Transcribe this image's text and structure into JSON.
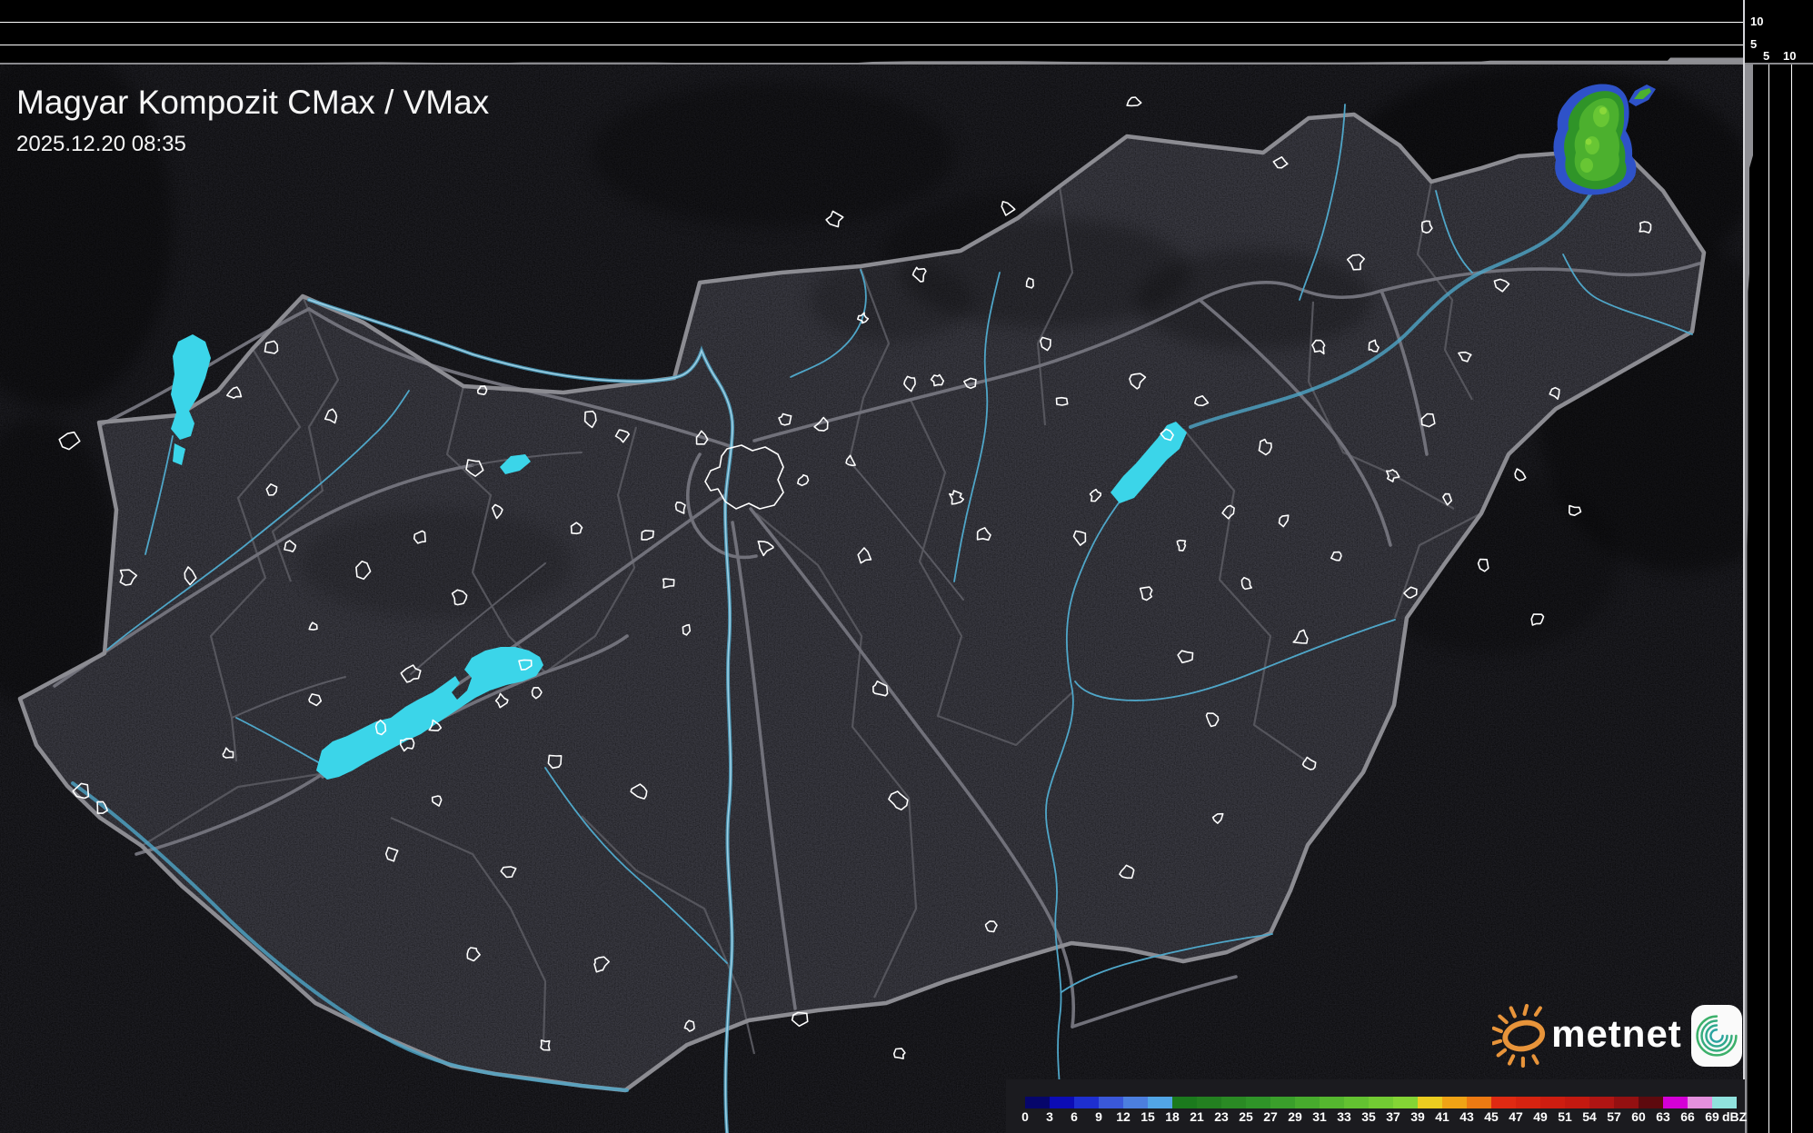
{
  "header": {
    "title": "Magyar Kompozit CMax / VMax",
    "timestamp": "2025.12.20 08:35"
  },
  "vmax_profile": {
    "top_axis": {
      "labels": [
        "10",
        "5"
      ]
    },
    "right_axis": {
      "labels": [
        "5",
        "10"
      ]
    }
  },
  "legend": {
    "unit": "dBZ",
    "cells": [
      {
        "label": "0",
        "color": "#06066B"
      },
      {
        "label": "3",
        "color": "#0C0CB5"
      },
      {
        "label": "6",
        "color": "#1E2FD0"
      },
      {
        "label": "9",
        "color": "#3A58D9"
      },
      {
        "label": "12",
        "color": "#4C7FDF"
      },
      {
        "label": "15",
        "color": "#52A5E6"
      },
      {
        "label": "18",
        "color": "#1B7A1D"
      },
      {
        "label": "21",
        "color": "#238020"
      },
      {
        "label": "23",
        "color": "#2A8A24"
      },
      {
        "label": "25",
        "color": "#2F9428"
      },
      {
        "label": "27",
        "color": "#3A9F2B"
      },
      {
        "label": "29",
        "color": "#47AB2D"
      },
      {
        "label": "31",
        "color": "#55B72F"
      },
      {
        "label": "33",
        "color": "#63C231"
      },
      {
        "label": "35",
        "color": "#72CB33"
      },
      {
        "label": "37",
        "color": "#84D435"
      },
      {
        "label": "39",
        "color": "#EBCD20"
      },
      {
        "label": "41",
        "color": "#F0A315"
      },
      {
        "label": "43",
        "color": "#ED7A12"
      },
      {
        "label": "45",
        "color": "#DF2A12"
      },
      {
        "label": "47",
        "color": "#D62310"
      },
      {
        "label": "49",
        "color": "#CE1D10"
      },
      {
        "label": "51",
        "color": "#C41910"
      },
      {
        "label": "54",
        "color": "#B01513"
      },
      {
        "label": "57",
        "color": "#941011"
      },
      {
        "label": "60",
        "color": "#5E0A0E"
      },
      {
        "label": "63",
        "color": "#D400D6"
      },
      {
        "label": "66",
        "color": "#E490DE"
      },
      {
        "label": "69",
        "color": "#90E2DE"
      }
    ]
  },
  "branding": {
    "logo_text": "metnet"
  },
  "colors": {
    "outside_fill": "#1D1D22",
    "country_fill": "#3A3A42",
    "country_border": "#8C8C92",
    "county_border": "#55555C",
    "road": "#71717A",
    "road_minor": "#5A5A62",
    "river": "#4FA6C8",
    "river_main": "#9CCFE4",
    "lake": "#3BD5E9",
    "city_outline": "#FFFFFF",
    "echo_fringe": "#2E52C8",
    "echo_low": "#2F9428",
    "echo_mid": "#4CB02E",
    "echo_high": "#68C634",
    "echo_core": "#8AD83A",
    "grid_line": "#FFFFFF",
    "terrain_profile": "#8F8F94",
    "baseline": "#8A8A8E",
    "legend_bg": "#1B1B1F",
    "text": "#F5F5F5"
  }
}
